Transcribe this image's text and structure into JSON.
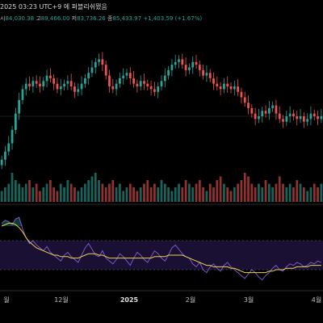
{
  "header": {
    "timestamp_line": "2025 03:23 UTC+9 에 퍼블리쉬됐음",
    "ohlc": [
      {
        "label": "시",
        "value": "84,030.38"
      },
      {
        "label": "고",
        "value": "89,466.00"
      },
      {
        "label": "저",
        "value": "83,736.26"
      },
      {
        "label": "종",
        "value": "85,433.97"
      }
    ],
    "change": "+1,403.59 (+1.67%)"
  },
  "colors": {
    "up": "#26a69a",
    "down": "#ef5350",
    "ma_line": "#e8d44d",
    "rsi_line": "#7e57c2",
    "rsi_band": "#1a1033",
    "background": "#000000"
  },
  "chart_data": {
    "type": "candlestick",
    "period_labels": [
      {
        "label": "월",
        "pos": 0.02
      },
      {
        "label": "12월",
        "pos": 0.19
      },
      {
        "label": "2025",
        "pos": 0.4,
        "bold": true
      },
      {
        "label": "2월",
        "pos": 0.59
      },
      {
        "label": "3월",
        "pos": 0.77
      },
      {
        "label": "4월",
        "pos": 0.98
      }
    ],
    "close_path": [
      69,
      72,
      75,
      80,
      86,
      91,
      95,
      97,
      96,
      98,
      97,
      96,
      98,
      100,
      99,
      97,
      95,
      96,
      97,
      98,
      96,
      94,
      95,
      97,
      99,
      101,
      103,
      105,
      106,
      104,
      100,
      96,
      95,
      97,
      99,
      100,
      101,
      99,
      97,
      96,
      98,
      97,
      96,
      95,
      94,
      96,
      98,
      100,
      102,
      104,
      105,
      106,
      104,
      102,
      103,
      105,
      104,
      102,
      100,
      101,
      99,
      97,
      96,
      95,
      97,
      96,
      95,
      96,
      94,
      92,
      90,
      88,
      86,
      84,
      85,
      87,
      86,
      88,
      89,
      86,
      84,
      83,
      85,
      86,
      85,
      84,
      85,
      83,
      84,
      86,
      85,
      84,
      85
    ],
    "volume_path": [
      3,
      4,
      5,
      8,
      6,
      5,
      4,
      5,
      6,
      4,
      5,
      3,
      4,
      5,
      6,
      4,
      3,
      5,
      4,
      6,
      5,
      4,
      3,
      4,
      5,
      6,
      7,
      8,
      6,
      5,
      4,
      5,
      6,
      4,
      5,
      3,
      4,
      5,
      4,
      3,
      4,
      5,
      6,
      4,
      5,
      4,
      6,
      5,
      4,
      3,
      4,
      5,
      4,
      6,
      5,
      4,
      5,
      6,
      4,
      3,
      5,
      4,
      6,
      7,
      5,
      4,
      3,
      4,
      5,
      6,
      8,
      7,
      5,
      4,
      5,
      4,
      6,
      5,
      4,
      5,
      7,
      5,
      4,
      5,
      4,
      6,
      5,
      4,
      3,
      4,
      5,
      4,
      5
    ],
    "rsi_range": [
      30,
      80
    ],
    "rsi_band": [
      40,
      60
    ],
    "rsi_path": [
      72,
      74,
      73,
      71,
      75,
      76,
      68,
      62,
      58,
      60,
      57,
      55,
      53,
      56,
      52,
      50,
      48,
      46,
      50,
      52,
      49,
      47,
      45,
      50,
      55,
      58,
      54,
      50,
      49,
      53,
      48,
      46,
      44,
      47,
      51,
      49,
      46,
      43,
      48,
      52,
      50,
      47,
      45,
      49,
      53,
      51,
      48,
      46,
      50,
      55,
      57,
      54,
      51,
      49,
      48,
      44,
      42,
      45,
      40,
      38,
      42,
      44,
      41,
      39,
      43,
      45,
      42,
      40,
      38,
      36,
      34,
      37,
      40,
      38,
      35,
      33,
      36,
      38,
      41,
      43,
      40,
      39,
      42,
      44,
      43,
      45,
      44,
      42,
      43,
      45,
      44,
      46,
      45
    ],
    "ma_path": [
      70,
      71,
      72,
      72,
      71,
      69,
      66,
      62,
      59,
      57,
      55,
      54,
      53,
      52,
      51,
      50,
      50,
      49,
      49,
      49,
      48,
      48,
      48,
      49,
      50,
      51,
      51,
      51,
      50,
      50,
      49,
      48,
      48,
      48,
      48,
      48,
      48,
      48,
      48,
      48,
      48,
      48,
      48,
      48,
      49,
      49,
      49,
      49,
      50,
      50,
      50,
      50,
      50,
      49,
      48,
      47,
      46,
      45,
      44,
      43,
      43,
      42,
      42,
      42,
      42,
      42,
      41,
      41,
      40,
      39,
      38,
      38,
      38,
      38,
      38,
      38,
      38,
      39,
      39,
      40,
      40,
      40,
      41,
      41,
      41,
      42,
      42,
      42,
      42,
      43,
      43,
      43,
      43
    ]
  }
}
